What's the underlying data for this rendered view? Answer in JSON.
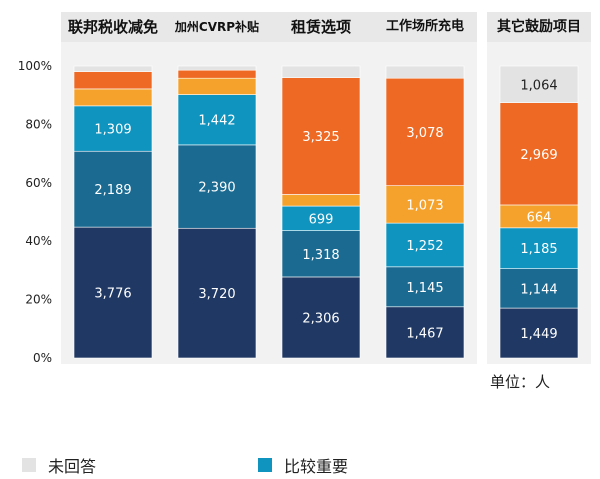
{
  "chart_data": {
    "type": "bar",
    "stacked": true,
    "normalized": true,
    "categories": [
      "联邦税收减免",
      "加州CVRP补贴",
      "租赁选项",
      "工作场所充电",
      "其它鼓励项目"
    ],
    "yticks": [
      "0%",
      "20%",
      "40%",
      "60%",
      "80%",
      "100%"
    ],
    "ylim": [
      0,
      100
    ],
    "series": [
      {
        "key": "s1",
        "color": "#1f3864",
        "values": [
          3776,
          3720,
          2306,
          1467,
          1449
        ]
      },
      {
        "key": "s2",
        "color": "#1b6a92",
        "values": [
          2189,
          2390,
          1318,
          1145,
          1144
        ]
      },
      {
        "key": "s3",
        "color": "#0f93bf",
        "name": "比较重要",
        "values": [
          1309,
          1442,
          699,
          1252,
          1185
        ]
      },
      {
        "key": "s4",
        "color": "#f4a22c",
        "values": [
          489,
          470,
          330,
          1073,
          664
        ]
      },
      {
        "key": "s5",
        "color": "#ee6a24",
        "values": [
          501,
          230,
          3325,
          3078,
          2969
        ]
      },
      {
        "key": "s6",
        "color": "#e3e3e3",
        "name": "未回答",
        "values": [
          160,
          120,
          330,
          350,
          1064
        ]
      }
    ],
    "data_labels": [
      [
        "3,776",
        "2,189",
        "1,309",
        "",
        "",
        ""
      ],
      [
        "3,720",
        "2,390",
        "1,442",
        "",
        "",
        ""
      ],
      [
        "2,306",
        "1,318",
        "699",
        "",
        "3,325",
        ""
      ],
      [
        "1,467",
        "1,145",
        "1,252",
        "1,073",
        "3,078",
        ""
      ],
      [
        "1,449",
        "1,144",
        "1,185",
        "664",
        "2,969",
        "1,064"
      ]
    ],
    "unit": "单位：人",
    "legend": [
      {
        "label": "未回答",
        "color": "#e3e3e3"
      },
      {
        "label": "比较重要",
        "color": "#0f93bf"
      }
    ]
  }
}
